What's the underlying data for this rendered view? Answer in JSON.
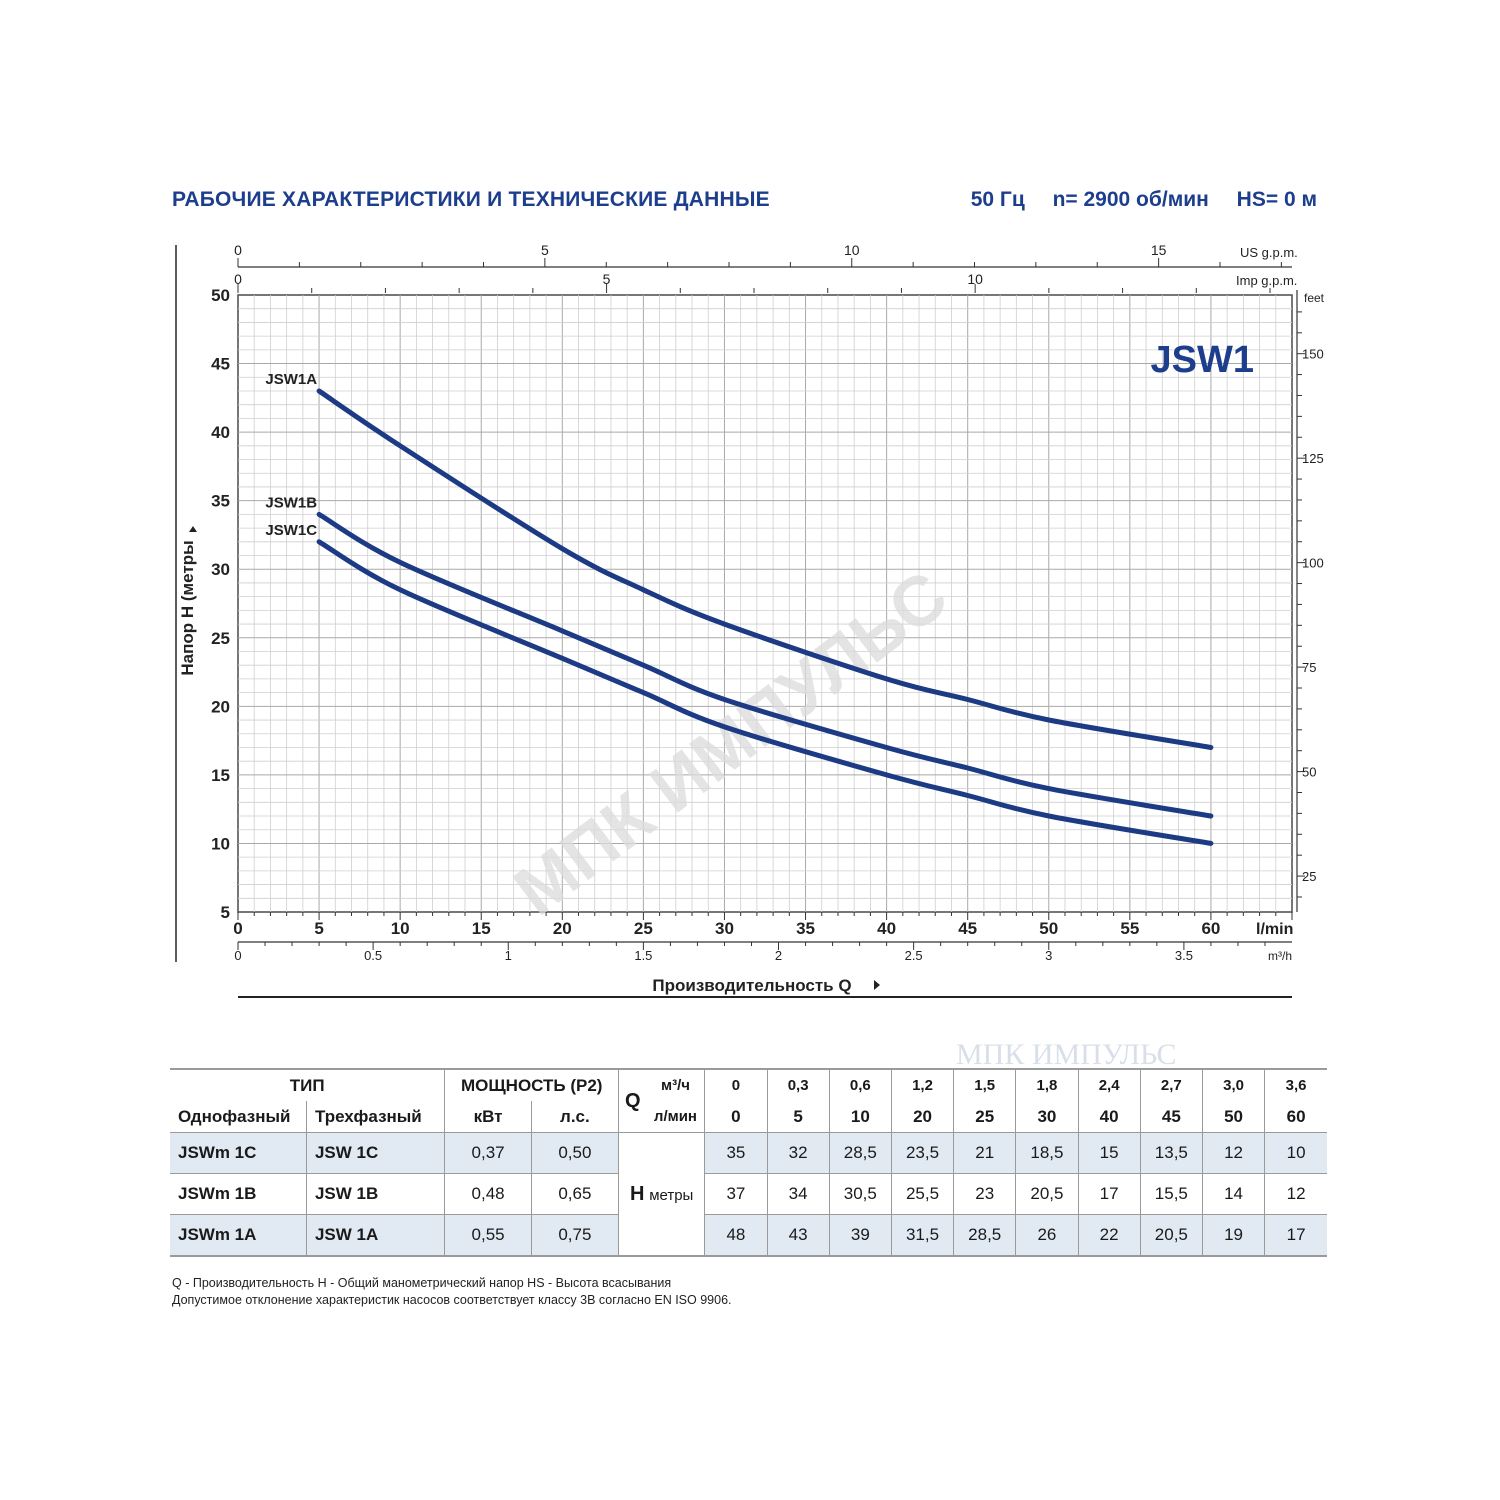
{
  "header": {
    "title": "РАБОЧИЕ ХАРАКТЕРИСТИКИ И ТЕХНИЧЕСКИЕ ДАННЫЕ",
    "freq": "50 Гц",
    "speed": "n= 2900 об/мин",
    "hs": "HS= 0 м"
  },
  "chart_data": {
    "type": "line",
    "model_label": "JSW1",
    "ylabel": "Напор Н (метры",
    "xlabel": "Производительность Q",
    "ylim": [
      5,
      50
    ],
    "y_ticks": [
      "50",
      "45",
      "40",
      "35",
      "30",
      "25",
      "20",
      "15",
      "10",
      "5"
    ],
    "xlim": [
      0,
      65
    ],
    "x_ticks": [
      "0",
      "5",
      "10",
      "15",
      "20",
      "25",
      "30",
      "35",
      "40",
      "45",
      "50",
      "55",
      "60"
    ],
    "x_unit": "l/min",
    "m3h_ticks": [
      "0",
      "0.5",
      "1",
      "1.5",
      "2",
      "2.5",
      "3",
      "3.5"
    ],
    "m3h_unit": "m³/h",
    "usgpm_ticks": [
      "0",
      "5",
      "10",
      "15"
    ],
    "usgpm_unit": "US g.p.m.",
    "impgpm_ticks": [
      "0",
      "5",
      "10"
    ],
    "impgpm_unit": "Imp g.p.m.",
    "feet_ticks": [
      "150",
      "125",
      "100",
      "75",
      "50",
      "25"
    ],
    "feet_unit": "feet",
    "grid": true,
    "series": [
      {
        "name": "JSW1A",
        "x": [
          5,
          10,
          20,
          25,
          30,
          40,
          45,
          50,
          60
        ],
        "y": [
          43,
          39,
          31.5,
          28.5,
          26,
          22,
          20.5,
          19,
          17
        ]
      },
      {
        "name": "JSW1B",
        "x": [
          5,
          10,
          20,
          25,
          30,
          40,
          45,
          50,
          60
        ],
        "y": [
          34,
          30.5,
          25.5,
          23,
          20.5,
          17,
          15.5,
          14,
          12
        ]
      },
      {
        "name": "JSW1C",
        "x": [
          5,
          10,
          20,
          25,
          30,
          40,
          45,
          50,
          60
        ],
        "y": [
          32,
          28.5,
          23.5,
          21,
          18.5,
          15,
          13.5,
          12,
          10
        ]
      }
    ],
    "watermark": "МПК ИМПУЛЬС"
  },
  "table": {
    "type_header": "ТИП",
    "single_header": "Однофазный",
    "three_header": "Трехфазный",
    "power_header": "МОЩНОСТЬ (P2)",
    "kw_header": "кВт",
    "hp_header": "л.с.",
    "q_header": "Q",
    "m3h_label": "м³/ч",
    "lmin_label": "л/мин",
    "h_label": "H",
    "h_unit": "метры",
    "q_m3h": [
      "0",
      "0,3",
      "0,6",
      "1,2",
      "1,5",
      "1,8",
      "2,4",
      "2,7",
      "3,0",
      "3,6"
    ],
    "q_lmin": [
      "0",
      "5",
      "10",
      "20",
      "25",
      "30",
      "40",
      "45",
      "50",
      "60"
    ],
    "rows": [
      {
        "single": "JSWm 1C",
        "three": "JSW 1C",
        "kw": "0,37",
        "hp": "0,50",
        "h": [
          "35",
          "32",
          "28,5",
          "23,5",
          "21",
          "18,5",
          "15",
          "13,5",
          "12",
          "10"
        ]
      },
      {
        "single": "JSWm 1B",
        "three": "JSW 1B",
        "kw": "0,48",
        "hp": "0,65",
        "h": [
          "37",
          "34",
          "30,5",
          "25,5",
          "23",
          "20,5",
          "17",
          "15,5",
          "14",
          "12"
        ]
      },
      {
        "single": "JSWm 1A",
        "three": "JSW 1A",
        "kw": "0,55",
        "hp": "0,75",
        "h": [
          "48",
          "43",
          "39",
          "31,5",
          "28,5",
          "26",
          "22",
          "20,5",
          "19",
          "17"
        ]
      }
    ],
    "watermark": "МПК ИМПУЛЬС"
  },
  "footnotes": {
    "line1": "Q - Производительность   H - Общий манометрический напор   HS - Высота всасывания",
    "line2": "Допустимое отклонение характеристик насосов соответствует классу 3В согласно EN ISO 9906."
  }
}
